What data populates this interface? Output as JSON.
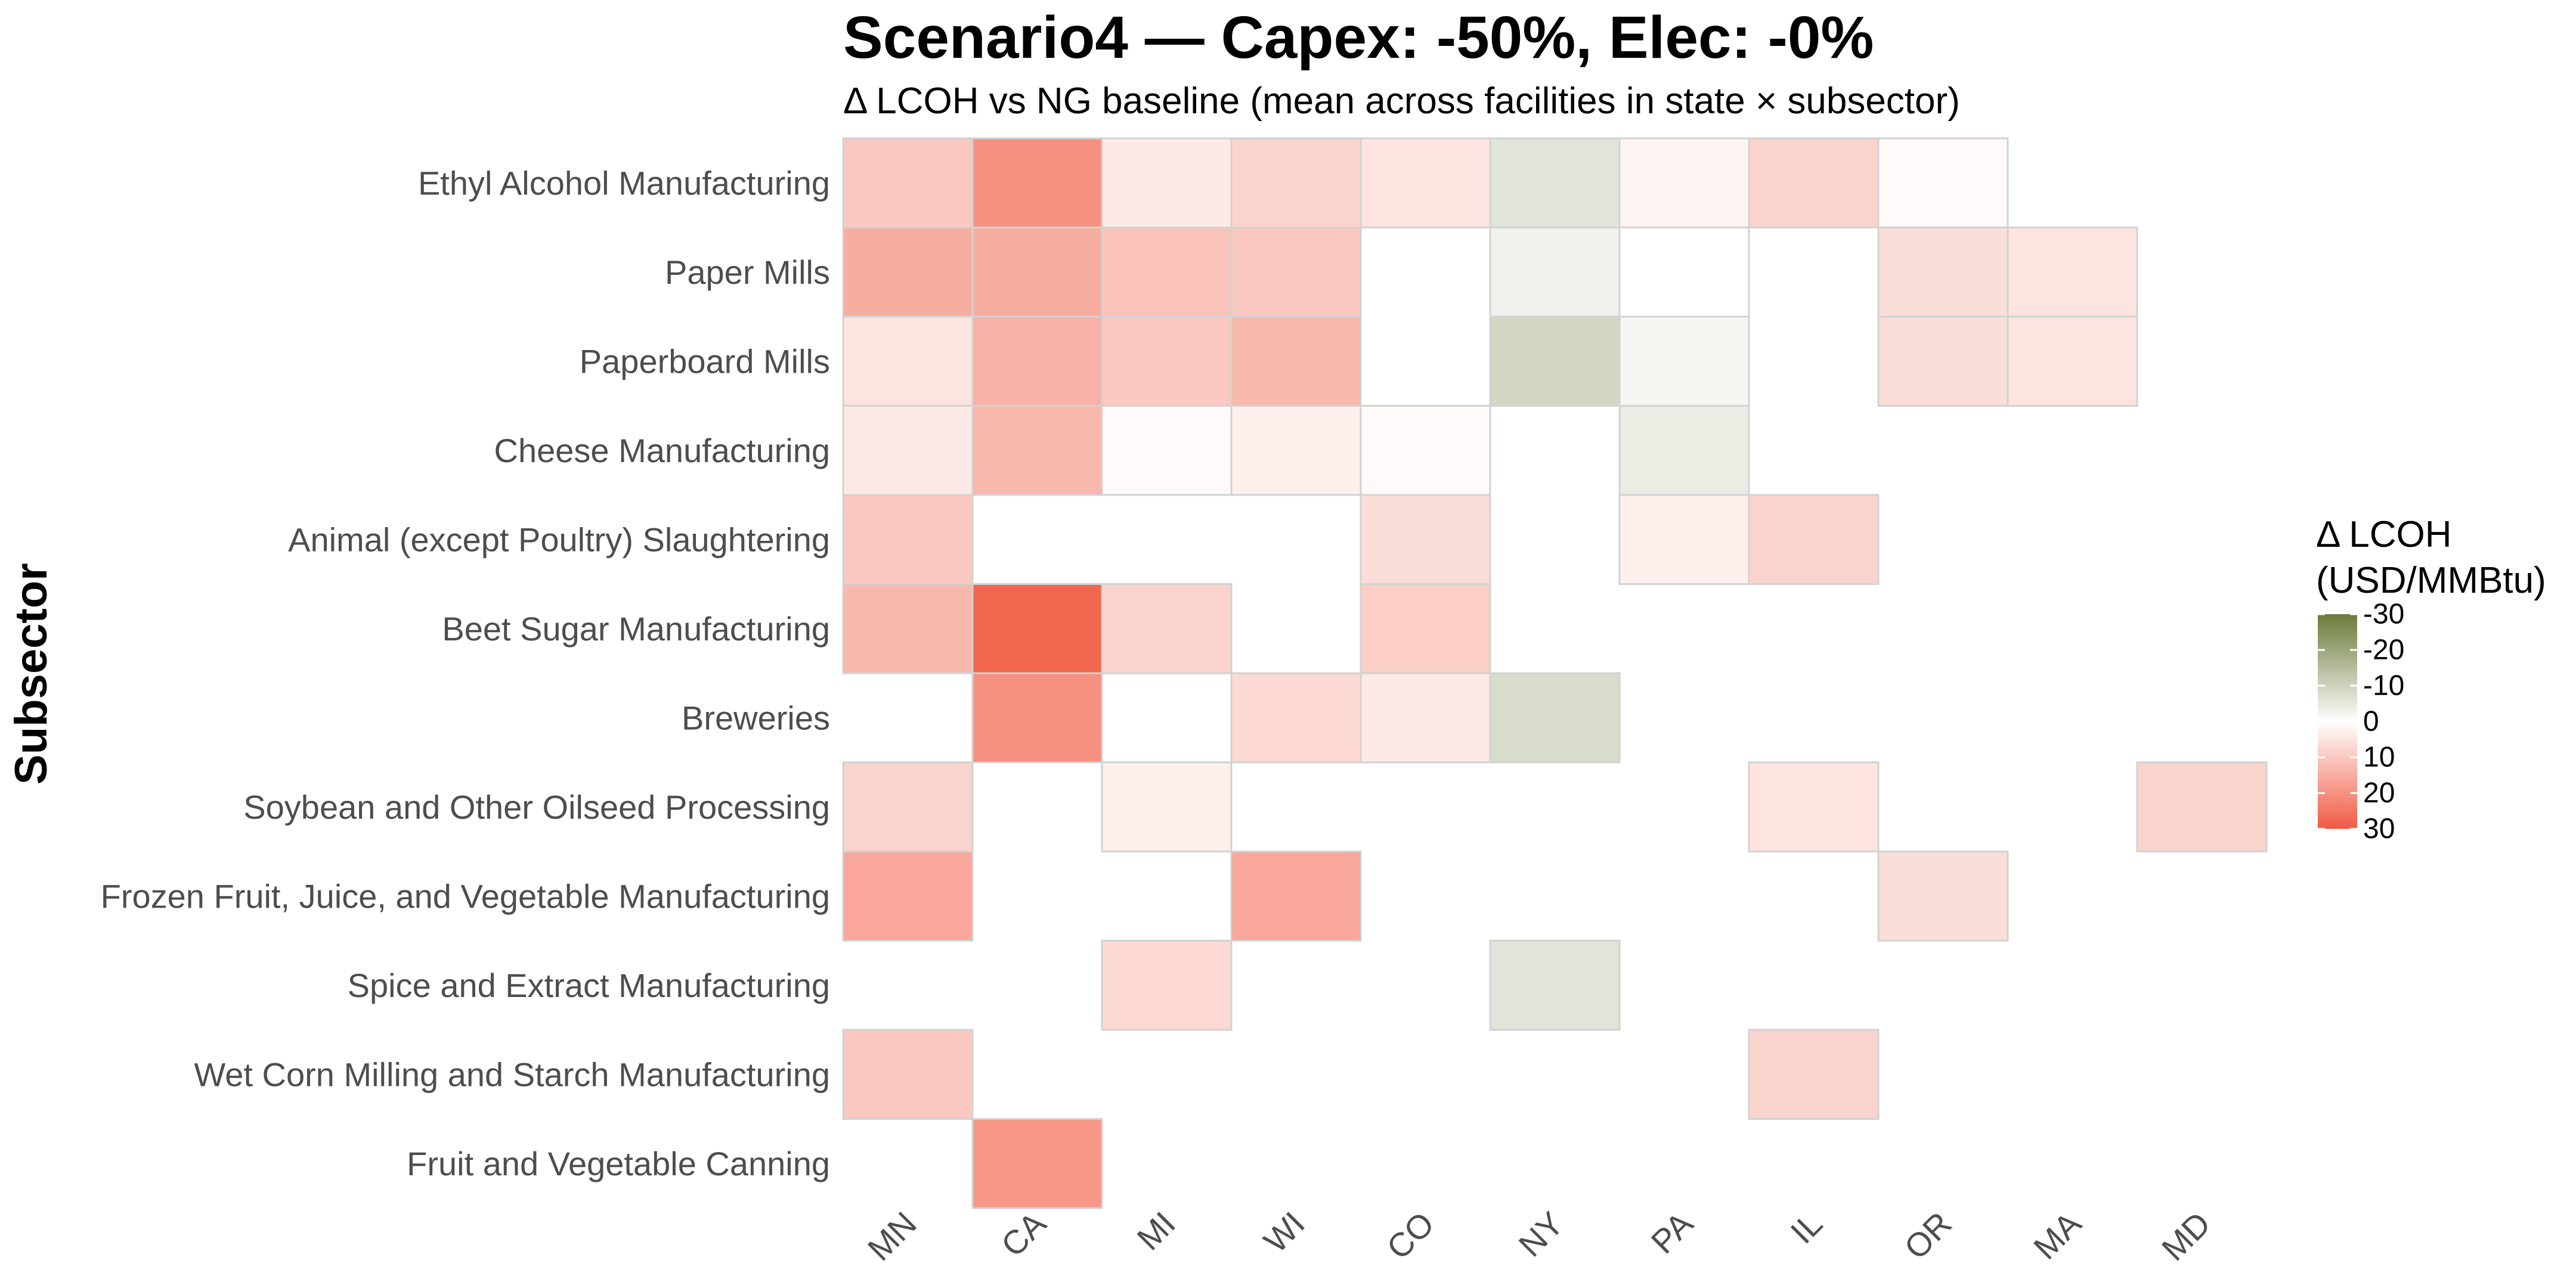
{
  "chart_data": {
    "type": "heatmap",
    "title": "Scenario4 — Capex: -50%, Elec: -0%",
    "subtitle": "Δ LCOH vs NG baseline (mean across facilities in state × subsector)",
    "xlabel": "",
    "ylabel": "Subsector",
    "x_categories": [
      "MN",
      "CA",
      "MI",
      "WI",
      "CO",
      "NY",
      "PA",
      "IL",
      "OR",
      "MA",
      "MD"
    ],
    "y_categories": [
      "Ethyl Alcohol Manufacturing",
      "Paper Mills",
      "Paperboard Mills",
      "Cheese Manufacturing",
      "Animal (except Poultry) Slaughtering",
      "Beet Sugar Manufacturing",
      "Breweries",
      "Soybean and Other Oilseed Processing",
      "Frozen Fruit, Juice, and Vegetable Manufacturing",
      "Spice and Extract Manufacturing",
      "Wet Corn Milling and Starch Manufacturing",
      "Fruit and Vegetable Canning"
    ],
    "cells": [
      {
        "x": "MN",
        "y": "Ethyl Alcohol Manufacturing",
        "value": 10
      },
      {
        "x": "CA",
        "y": "Ethyl Alcohol Manufacturing",
        "value": 20
      },
      {
        "x": "MI",
        "y": "Ethyl Alcohol Manufacturing",
        "value": 4
      },
      {
        "x": "WI",
        "y": "Ethyl Alcohol Manufacturing",
        "value": 8
      },
      {
        "x": "CO",
        "y": "Ethyl Alcohol Manufacturing",
        "value": 5
      },
      {
        "x": "NY",
        "y": "Ethyl Alcohol Manufacturing",
        "value": -6
      },
      {
        "x": "PA",
        "y": "Ethyl Alcohol Manufacturing",
        "value": 2
      },
      {
        "x": "IL",
        "y": "Ethyl Alcohol Manufacturing",
        "value": 8
      },
      {
        "x": "OR",
        "y": "Ethyl Alcohol Manufacturing",
        "value": 1
      },
      {
        "x": "MN",
        "y": "Paper Mills",
        "value": 15
      },
      {
        "x": "CA",
        "y": "Paper Mills",
        "value": 15
      },
      {
        "x": "MI",
        "y": "Paper Mills",
        "value": 11
      },
      {
        "x": "WI",
        "y": "Paper Mills",
        "value": 10
      },
      {
        "x": "NY",
        "y": "Paper Mills",
        "value": -3
      },
      {
        "x": "PA",
        "y": "Paper Mills",
        "value": 0
      },
      {
        "x": "OR",
        "y": "Paper Mills",
        "value": 6
      },
      {
        "x": "MA",
        "y": "Paper Mills",
        "value": 5
      },
      {
        "x": "MN",
        "y": "Paperboard Mills",
        "value": 5
      },
      {
        "x": "CA",
        "y": "Paperboard Mills",
        "value": 14
      },
      {
        "x": "MI",
        "y": "Paperboard Mills",
        "value": 10
      },
      {
        "x": "WI",
        "y": "Paperboard Mills",
        "value": 13
      },
      {
        "x": "NY",
        "y": "Paperboard Mills",
        "value": -9
      },
      {
        "x": "PA",
        "y": "Paperboard Mills",
        "value": -2
      },
      {
        "x": "OR",
        "y": "Paperboard Mills",
        "value": 6
      },
      {
        "x": "MA",
        "y": "Paperboard Mills",
        "value": 5
      },
      {
        "x": "MN",
        "y": "Cheese Manufacturing",
        "value": 4
      },
      {
        "x": "CA",
        "y": "Cheese Manufacturing",
        "value": 13
      },
      {
        "x": "MI",
        "y": "Cheese Manufacturing",
        "value": 1
      },
      {
        "x": "WI",
        "y": "Cheese Manufacturing",
        "value": 3
      },
      {
        "x": "CO",
        "y": "Cheese Manufacturing",
        "value": 1
      },
      {
        "x": "PA",
        "y": "Cheese Manufacturing",
        "value": -4
      },
      {
        "x": "MN",
        "y": "Animal (except Poultry) Slaughtering",
        "value": 10
      },
      {
        "x": "CO",
        "y": "Animal (except Poultry) Slaughtering",
        "value": 6
      },
      {
        "x": "PA",
        "y": "Animal (except Poultry) Slaughtering",
        "value": 3
      },
      {
        "x": "IL",
        "y": "Animal (except Poultry) Slaughtering",
        "value": 8
      },
      {
        "x": "MN",
        "y": "Beet Sugar Manufacturing",
        "value": 13
      },
      {
        "x": "CA",
        "y": "Beet Sugar Manufacturing",
        "value": 28
      },
      {
        "x": "MI",
        "y": "Beet Sugar Manufacturing",
        "value": 8
      },
      {
        "x": "CO",
        "y": "Beet Sugar Manufacturing",
        "value": 9
      },
      {
        "x": "CA",
        "y": "Breweries",
        "value": 20
      },
      {
        "x": "WI",
        "y": "Breweries",
        "value": 7
      },
      {
        "x": "CO",
        "y": "Breweries",
        "value": 4
      },
      {
        "x": "NY",
        "y": "Breweries",
        "value": -8
      },
      {
        "x": "MN",
        "y": "Soybean and Other Oilseed Processing",
        "value": 8
      },
      {
        "x": "MI",
        "y": "Soybean and Other Oilseed Processing",
        "value": 3
      },
      {
        "x": "IL",
        "y": "Soybean and Other Oilseed Processing",
        "value": 5
      },
      {
        "x": "MD",
        "y": "Soybean and Other Oilseed Processing",
        "value": 8
      },
      {
        "x": "MN",
        "y": "Frozen Fruit, Juice, and Vegetable Manufacturing",
        "value": 16
      },
      {
        "x": "WI",
        "y": "Frozen Fruit, Juice, and Vegetable Manufacturing",
        "value": 16
      },
      {
        "x": "OR",
        "y": "Frozen Fruit, Juice, and Vegetable Manufacturing",
        "value": 6
      },
      {
        "x": "MI",
        "y": "Spice and Extract Manufacturing",
        "value": 7
      },
      {
        "x": "NY",
        "y": "Spice and Extract Manufacturing",
        "value": -6
      },
      {
        "x": "MN",
        "y": "Wet Corn Milling and Starch Manufacturing",
        "value": 10
      },
      {
        "x": "IL",
        "y": "Wet Corn Milling and Starch Manufacturing",
        "value": 8
      },
      {
        "x": "CA",
        "y": "Fruit and Vegetable Canning",
        "value": 19
      }
    ],
    "legend": {
      "title_lines": [
        "Δ LCOH",
        "(USD/MMBtu)"
      ],
      "ticks": [
        -30,
        -20,
        -10,
        0,
        10,
        20,
        30
      ],
      "min": -30,
      "max": 30,
      "placement": "right"
    },
    "colors": {
      "negative": "#6b7a3a",
      "zero": "#ffffff",
      "positive": "#f15a42",
      "cell_border": "#d2d2d2"
    }
  }
}
